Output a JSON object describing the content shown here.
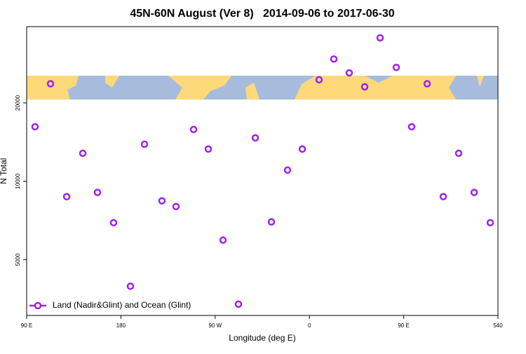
{
  "chart_data": {
    "type": "scatter",
    "title": "45N-60N August (Ver 8)   2014-09-06 to 2017-06-30",
    "x_label": "Longitude (deg E)",
    "y_label": "N Total",
    "series": [
      {
        "name": "Land (Nadir&Glint) and Ocean (Glint)",
        "color": "#a020f0",
        "x": [
          98.0,
          112.8,
          128.2,
          143.6,
          157.6,
          173.0,
          189.1,
          202.5,
          219.2,
          232.6,
          249.4,
          263.4,
          277.5,
          292.2,
          308.3,
          323.7,
          339.1,
          353.2,
          369.2,
          383.3,
          398.0,
          412.8,
          427.5,
          442.9,
          457.6,
          472.4,
          487.8,
          502.5,
          517.3,
          532.7
        ],
        "values": [
          16200,
          23700,
          8730,
          12810,
          9060,
          6930,
          3950,
          13880,
          8410,
          8000,
          15820,
          13300,
          5940,
          3370,
          14680,
          6980,
          11040,
          13300,
          24560,
          29500,
          26100,
          23070,
          35600,
          27400,
          16200,
          23700,
          8730,
          12810,
          9060,
          6930
        ]
      }
    ],
    "xlim": [
      90,
      540
    ],
    "xticks": [
      {
        "value": 90,
        "label": "90 E"
      },
      180,
      {
        "value": 270,
        "label": "90 W"
      },
      {
        "value": 360,
        "label": "0"
      },
      {
        "value": 450,
        "label": "90 E"
      },
      540
    ],
    "ylim": [
      3050,
      39300
    ],
    "yticks": [
      5000,
      10000,
      20000
    ],
    "ylog": true,
    "legend": "bottom-left"
  }
}
